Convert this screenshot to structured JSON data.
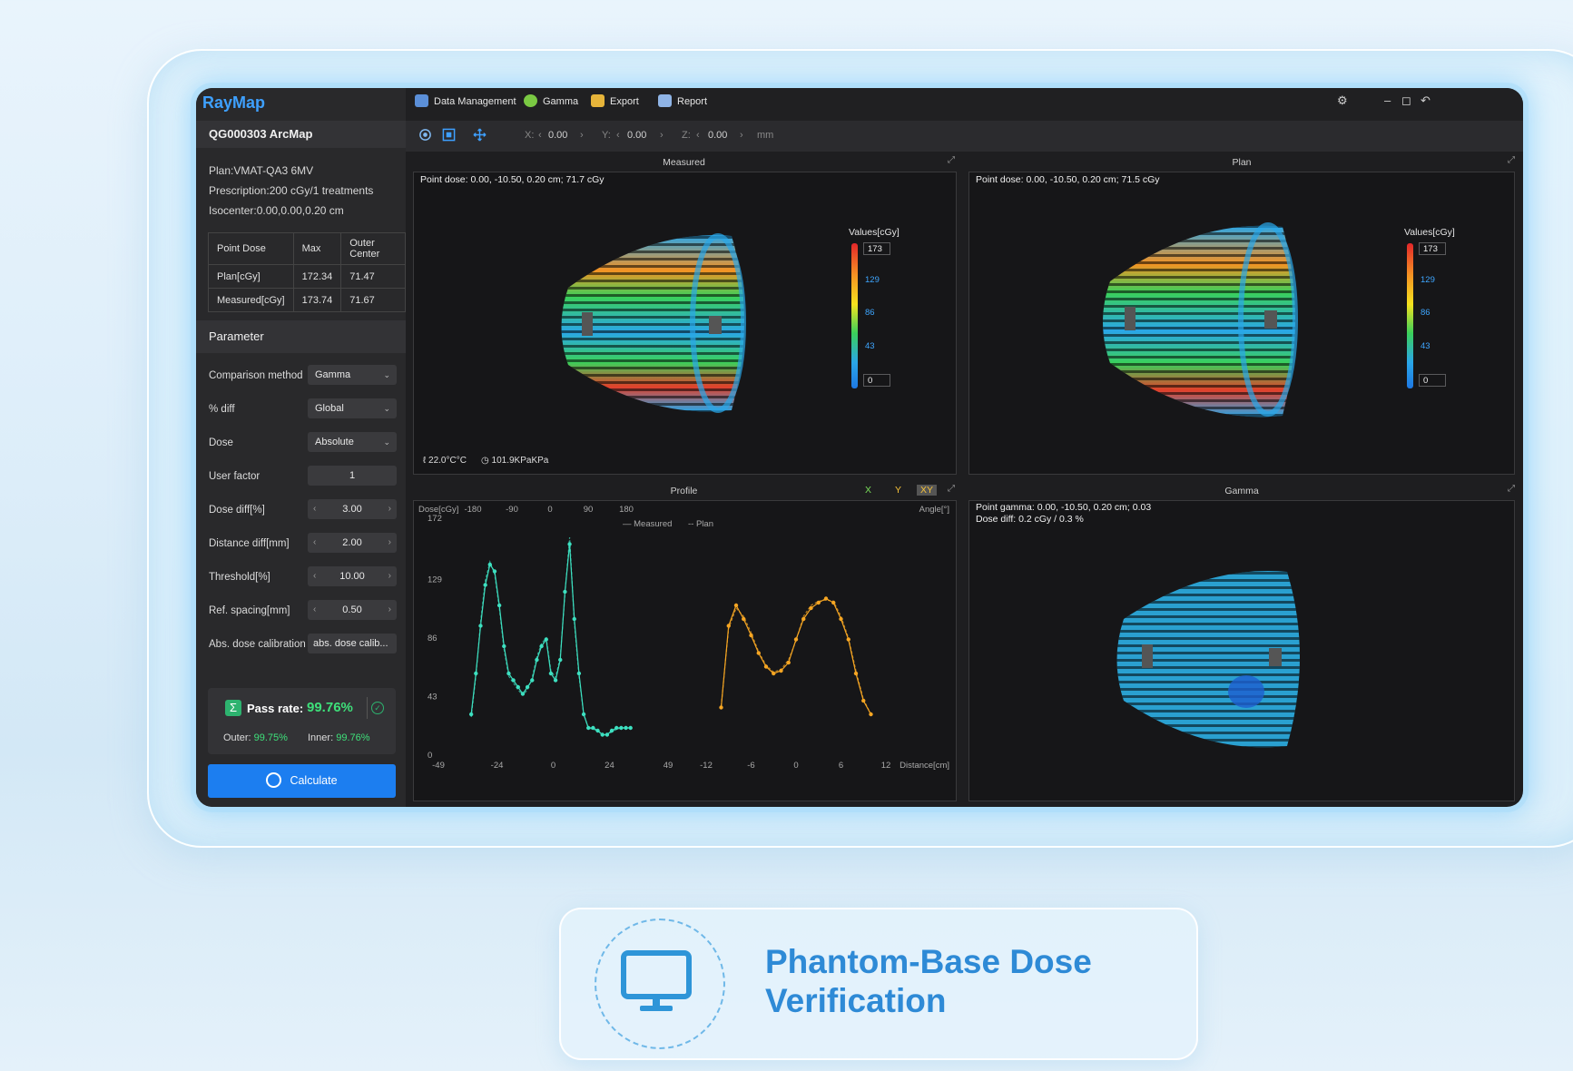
{
  "app": {
    "logo": "RayMap",
    "session_title": "QG000303  ArcMap"
  },
  "plan_info": {
    "plan": "Plan:VMAT-QA3 6MV",
    "prescription": "Prescription:200 cGy/1 treatments",
    "isocenter": "Isocenter:0.00,0.00,0.20 cm"
  },
  "dose_table": {
    "headers": [
      "Point Dose",
      "Max",
      "Outer Center"
    ],
    "rows": [
      [
        "Plan[cGy]",
        "172.34",
        "71.47"
      ],
      [
        "Measured[cGy]",
        "173.74",
        "71.67"
      ]
    ]
  },
  "parameter": {
    "heading": "Parameter",
    "rows": [
      {
        "label": "Comparison method",
        "value": "Gamma"
      },
      {
        "label": "% diff",
        "value": "Global"
      },
      {
        "label": "Dose",
        "value": "Absolute"
      },
      {
        "label": "User factor",
        "value": "1"
      },
      {
        "label": "Dose diff[%]",
        "value": "3.00"
      },
      {
        "label": "Distance diff[mm]",
        "value": "2.00"
      },
      {
        "label": "Threshold[%]",
        "value": "10.00"
      },
      {
        "label": "Ref. spacing[mm]",
        "value": "0.50"
      },
      {
        "label": "Abs. dose calibration",
        "value": "abs. dose calib..."
      }
    ]
  },
  "pass": {
    "label": "Pass rate:",
    "value": "99.76%",
    "outer_label": "Outer:",
    "outer_value": "99.75%",
    "inner_label": "Inner:",
    "inner_value": "99.76%"
  },
  "calculate_label": "Calculate",
  "menu": [
    {
      "label": "Data Management",
      "icon": "user-icon"
    },
    {
      "label": "Gamma",
      "icon": "gamma-icon"
    },
    {
      "label": "Export",
      "icon": "folder-icon"
    },
    {
      "label": "Report",
      "icon": "report-icon"
    }
  ],
  "toolbar": {
    "x_label": "X:",
    "x_value": "0.00",
    "y_label": "Y:",
    "y_value": "0.00",
    "z_label": "Z:",
    "z_value": "0.00",
    "unit": "mm"
  },
  "panels": {
    "measured": {
      "title": "Measured",
      "point_dose": "Point dose: 0.00, -10.50, 0.20 cm; 71.7 cGy",
      "temperature": "22.0°C°C",
      "pressure": "101.9KPaKPa"
    },
    "plan": {
      "title": "Plan",
      "point_dose": "Point dose: 0.00, -10.50, 0.20 cm; 71.5 cGy"
    },
    "profile": {
      "title": "Profile",
      "tabs": [
        "X",
        "Y",
        "XY"
      ]
    },
    "gamma": {
      "title": "Gamma",
      "point_gamma": "Point gamma: 0.00, -10.50, 0.20 cm; 0.03",
      "dose_diff": "Dose diff: 0.2 cGy / 0.3 %"
    }
  },
  "colorbar": {
    "title": "Values[cGy]",
    "max_box": "173",
    "min_box": "0",
    "ticks": [
      "129",
      "86",
      "43"
    ]
  },
  "chart_data": {
    "type": "line",
    "ylabel": "Dose[cGy]",
    "top_axis_label": "Angle[°]",
    "top_ticks": [
      "-180",
      "-90",
      "0",
      "90",
      "180"
    ],
    "xlabel": "Distance[cm]",
    "y_ticks": [
      "172",
      "129",
      "86",
      "43",
      "0"
    ],
    "ylim": [
      0,
      172
    ],
    "legend": [
      "Measured",
      "Plan"
    ],
    "legend_position": "top",
    "panels": [
      {
        "x_ticks": [
          "-49",
          "-24",
          "0",
          "24",
          "49"
        ],
        "xlim": [
          -49,
          49
        ],
        "color": "#3de0c0",
        "series": [
          {
            "name": "Measured",
            "x": [
              -35,
              -33,
              -31,
              -29,
              -27,
              -25,
              -23,
              -21,
              -19,
              -17,
              -15,
              -13,
              -11,
              -9,
              -7,
              -5,
              -3,
              -1,
              1,
              3,
              5,
              7,
              9,
              11,
              13,
              15,
              17,
              19,
              21,
              23,
              25,
              27,
              29,
              31,
              33
            ],
            "y": [
              30,
              60,
              95,
              125,
              140,
              135,
              110,
              80,
              60,
              55,
              50,
              45,
              50,
              55,
              70,
              80,
              85,
              60,
              55,
              70,
              120,
              155,
              100,
              60,
              30,
              20,
              20,
              18,
              15,
              15,
              18,
              20,
              20,
              20,
              20
            ]
          },
          {
            "name": "Plan",
            "x": [
              -35,
              -33,
              -31,
              -29,
              -27,
              -25,
              -23,
              -21,
              -19,
              -17,
              -15,
              -13,
              -11,
              -9,
              -7,
              -5,
              -3,
              -1,
              1,
              3,
              5,
              7,
              9,
              11,
              13,
              15,
              17,
              19,
              21,
              23,
              25,
              27,
              29,
              31,
              33
            ],
            "y": [
              28,
              58,
              98,
              128,
              142,
              133,
              108,
              78,
              58,
              53,
              48,
              44,
              48,
              57,
              72,
              82,
              86,
              62,
              57,
              72,
              118,
              160,
              98,
              58,
              30,
              20,
              19,
              18,
              15,
              15,
              17,
              19,
              20,
              20,
              20
            ]
          }
        ]
      },
      {
        "x_ticks": [
          "-12",
          "-6",
          "0",
          "6",
          "12"
        ],
        "xlim": [
          -12,
          12
        ],
        "color": "#f6a623",
        "series": [
          {
            "name": "Measured",
            "x": [
              -10,
              -9,
              -8,
              -7,
              -6,
              -5,
              -4,
              -3,
              -2,
              -1,
              0,
              1,
              2,
              3,
              4,
              5,
              6,
              7,
              8,
              9,
              10
            ],
            "y": [
              35,
              95,
              110,
              100,
              88,
              75,
              65,
              60,
              62,
              68,
              85,
              100,
              108,
              112,
              115,
              112,
              100,
              85,
              60,
              40,
              30
            ]
          },
          {
            "name": "Plan",
            "x": [
              -10,
              -9,
              -8,
              -7,
              -6,
              -5,
              -4,
              -3,
              -2,
              -1,
              0,
              1,
              2,
              3,
              4,
              5,
              6,
              7,
              8,
              9,
              10
            ],
            "y": [
              36,
              93,
              108,
              102,
              90,
              76,
              66,
              61,
              63,
              70,
              84,
              102,
              110,
              113,
              114,
              113,
              102,
              86,
              62,
              41,
              30
            ]
          }
        ]
      }
    ]
  },
  "card": {
    "title_line1": "Phantom-Base Dose",
    "title_line2": "Verification",
    "icon": "monitor-icon"
  },
  "colors": {
    "accent": "#1c7ef0",
    "pass_green": "#3ee07a",
    "card_title": "#2e8ad6"
  }
}
